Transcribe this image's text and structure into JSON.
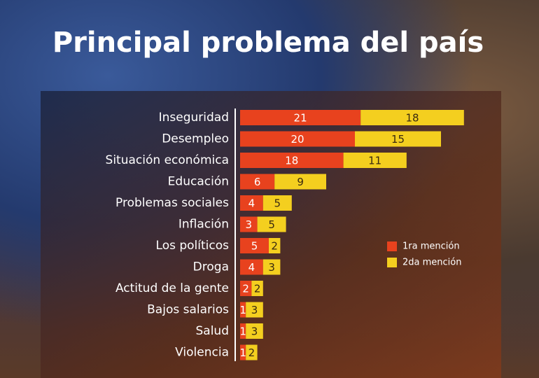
{
  "chart_data": {
    "type": "stacked-bar",
    "orientation": "horizontal",
    "title": "Principal problema del país",
    "categories": [
      "Inseguridad",
      "Desempleo",
      "Situación económica",
      "Educación",
      "Problemas sociales",
      "Inflación",
      "Los políticos",
      "Droga",
      "Actitud de la gente",
      "Bajos salarios",
      "Salud",
      "Violencia"
    ],
    "series": [
      {
        "name": "1ra mención",
        "color": "#e8421e",
        "values": [
          21,
          20,
          18,
          6,
          4,
          3,
          5,
          4,
          2,
          1,
          1,
          1
        ]
      },
      {
        "name": "2da mención",
        "color": "#f4cf1f",
        "values": [
          18,
          15,
          11,
          9,
          5,
          5,
          2,
          3,
          2,
          3,
          3,
          2
        ]
      }
    ]
  }
}
